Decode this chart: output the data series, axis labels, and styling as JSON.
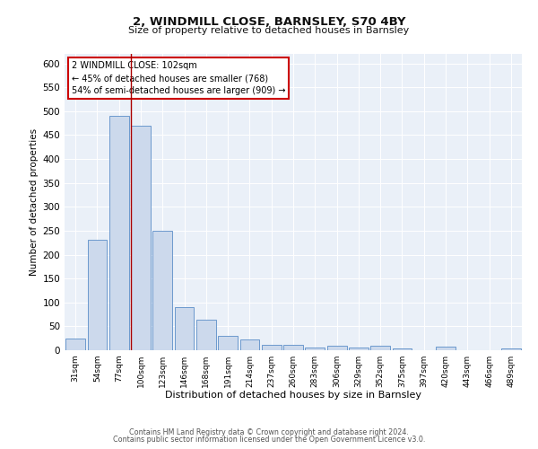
{
  "title": "2, WINDMILL CLOSE, BARNSLEY, S70 4BY",
  "subtitle": "Size of property relative to detached houses in Barnsley",
  "xlabel": "Distribution of detached houses by size in Barnsley",
  "ylabel": "Number of detached properties",
  "bar_labels": [
    "31sqm",
    "54sqm",
    "77sqm",
    "100sqm",
    "123sqm",
    "146sqm",
    "168sqm",
    "191sqm",
    "214sqm",
    "237sqm",
    "260sqm",
    "283sqm",
    "306sqm",
    "329sqm",
    "352sqm",
    "375sqm",
    "397sqm",
    "420sqm",
    "443sqm",
    "466sqm",
    "489sqm"
  ],
  "bar_values": [
    25,
    232,
    490,
    470,
    250,
    90,
    63,
    30,
    22,
    12,
    11,
    5,
    10,
    6,
    10,
    4,
    0,
    7,
    0,
    0,
    4
  ],
  "bar_color": "#ccd9ec",
  "bar_edge_color": "#5b8dc8",
  "ylim": [
    0,
    620
  ],
  "yticks": [
    0,
    50,
    100,
    150,
    200,
    250,
    300,
    350,
    400,
    450,
    500,
    550,
    600
  ],
  "bg_color": "#eaf0f8",
  "property_line_index": 3,
  "property_line_color": "#aa0000",
  "annotation_text": "2 WINDMILL CLOSE: 102sqm\n← 45% of detached houses are smaller (768)\n54% of semi-detached houses are larger (909) →",
  "annotation_box_color": "#ffffff",
  "annotation_box_edge": "#cc0000",
  "footer_line1": "Contains HM Land Registry data © Crown copyright and database right 2024.",
  "footer_line2": "Contains public sector information licensed under the Open Government Licence v3.0."
}
